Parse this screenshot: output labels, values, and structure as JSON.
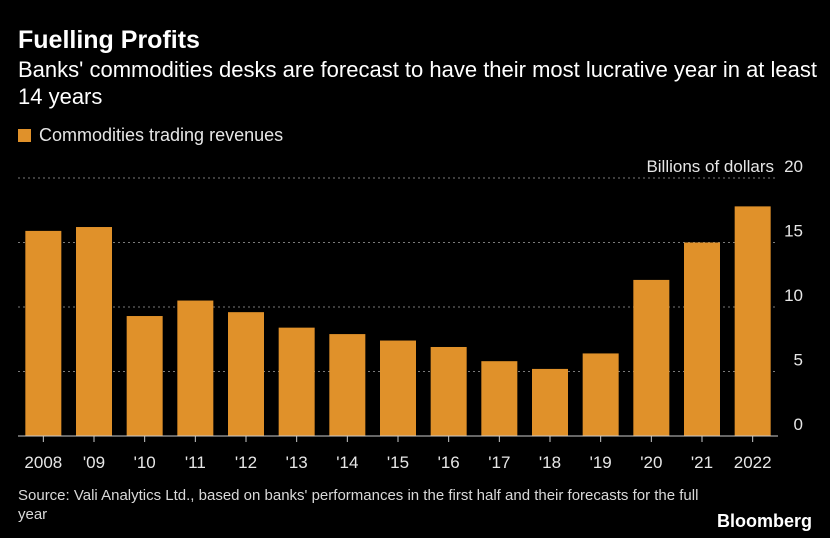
{
  "header": {
    "title": "Fuelling Profits",
    "subtitle": "Banks' commodities desks are forecast to have their most lucrative year in at least 14 years"
  },
  "footer": {
    "source": "Source: Vali Analytics Ltd., based on banks' performances in the first half and their forecasts for the full year",
    "brand": "Bloomberg"
  },
  "colors": {
    "bar": "#e0912a",
    "background": "#000000",
    "grid": "#7a7a7a",
    "text": "#ffffff"
  },
  "chart_data": {
    "type": "bar",
    "title": "Fuelling Profits",
    "subtitle": "Banks' commodities desks are forecast to have their most lucrative year in at least 14 years",
    "series": [
      {
        "name": "Commodities trading revenues",
        "values": [
          15.9,
          16.2,
          9.3,
          10.5,
          9.6,
          8.4,
          7.9,
          7.4,
          6.9,
          5.8,
          5.2,
          6.4,
          12.1,
          15.0,
          17.8
        ]
      }
    ],
    "categories": [
      "2008",
      "'09",
      "'10",
      "'11",
      "'12",
      "'13",
      "'14",
      "'15",
      "'16",
      "'17",
      "'18",
      "'19",
      "'20",
      "'21",
      "2022"
    ],
    "ylabel": "Billions of dollars",
    "xlabel": "",
    "ylim": [
      0,
      20
    ],
    "yticks": [
      0,
      5,
      10,
      15,
      20
    ],
    "grid": true,
    "legend_position": "top-left"
  }
}
